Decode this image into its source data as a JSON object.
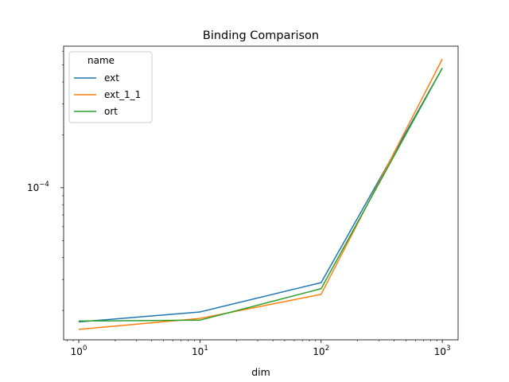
{
  "chart_data": {
    "type": "line",
    "title": "Binding Comparison",
    "xlabel": "dim",
    "ylabel": "",
    "x_scale": "log",
    "y_scale": "log",
    "xlim": [
      0.75,
      1350
    ],
    "ylim": [
      1.36e-05,
      0.00064
    ],
    "x": [
      1,
      10,
      100,
      1000
    ],
    "x_ticks": [
      {
        "value": 1,
        "base": "10",
        "exp": "0"
      },
      {
        "value": 10,
        "base": "10",
        "exp": "1"
      },
      {
        "value": 100,
        "base": "10",
        "exp": "2"
      },
      {
        "value": 1000,
        "base": "10",
        "exp": "3"
      }
    ],
    "y_ticks": [
      {
        "value": 0.0001,
        "base": "10",
        "exp": "−4"
      }
    ],
    "legend": {
      "title": "name",
      "placement": "upper-left"
    },
    "series": [
      {
        "name": "ext",
        "color": "#1f77b4",
        "values": [
          1.72e-05,
          1.96e-05,
          2.88e-05,
          0.00048
        ]
      },
      {
        "name": "ext_1_1",
        "color": "#ff7f0e",
        "values": [
          1.56e-05,
          1.8e-05,
          2.47e-05,
          0.00054
        ]
      },
      {
        "name": "ort",
        "color": "#2ca02c",
        "values": [
          1.74e-05,
          1.76e-05,
          2.66e-05,
          0.00048
        ]
      }
    ]
  }
}
